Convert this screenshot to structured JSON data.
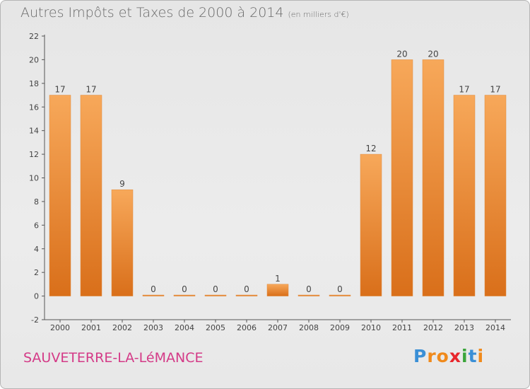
{
  "header": {
    "title": "Autres Impôts et Taxes de 2000 à 2014",
    "subtitle": "(en milliers d'€)"
  },
  "footer": {
    "place": "SAUVETERRE-LA-LéMANCE",
    "logo_letters": [
      "P",
      "r",
      "o",
      "x",
      "i",
      "t",
      "i"
    ],
    "logo_colors": [
      "#3a8fd6",
      "#f08a1c",
      "#f08a1c",
      "#e8262c",
      "#3aa53a",
      "#3a8fd6",
      "#f08a1c"
    ]
  },
  "colors": {
    "bar_top": "#f7a85a",
    "bar_bottom": "#d96f1a",
    "bar_stroke": "#e08a3c",
    "axis": "#555555",
    "grid": "#d0d0d0",
    "text": "#444444"
  },
  "chart_data": {
    "type": "bar",
    "title": "Autres Impôts et Taxes de 2000 à 2014",
    "subtitle": "(en milliers d'€)",
    "categories": [
      "2000",
      "2001",
      "2002",
      "2003",
      "2004",
      "2005",
      "2006",
      "2007",
      "2008",
      "2009",
      "2010",
      "2011",
      "2012",
      "2013",
      "2014"
    ],
    "values": [
      17,
      17,
      9,
      0,
      0,
      0,
      0,
      1,
      0,
      0,
      12,
      20,
      20,
      17,
      17
    ],
    "data_labels": [
      "17",
      "17",
      "9",
      "0",
      "0",
      "0",
      "0",
      "1",
      "0",
      "0",
      "12",
      "20",
      "20",
      "17",
      "17"
    ],
    "yticks": [
      -2,
      0,
      2,
      4,
      6,
      8,
      10,
      12,
      14,
      16,
      18,
      20,
      22
    ],
    "ylim": [
      -2,
      22
    ],
    "grid": false,
    "legend": "none"
  }
}
